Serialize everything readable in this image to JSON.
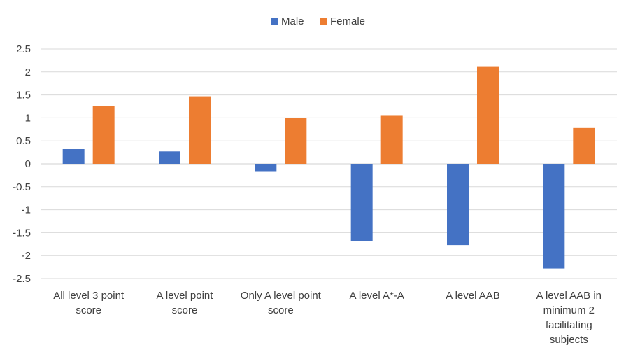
{
  "chart_data": {
    "type": "bar",
    "categories": [
      "All level 3 point score",
      "A level point score",
      "Only A level point score",
      "A level A*-A",
      "A level AAB",
      "A level AAB in minimum 2 facilitating subjects"
    ],
    "category_label_lines": [
      [
        "All level 3 point",
        "score"
      ],
      [
        "A level point",
        "score"
      ],
      [
        "Only A level point",
        "score"
      ],
      [
        "A level A*-A"
      ],
      [
        "A level AAB"
      ],
      [
        "A level AAB in",
        "minimum 2",
        "facilitating",
        "subjects"
      ]
    ],
    "series": [
      {
        "name": "Male",
        "color": "#4472c4",
        "values": [
          0.32,
          0.27,
          -0.16,
          -1.68,
          -1.77,
          -2.28
        ]
      },
      {
        "name": "Female",
        "color": "#ed7d31",
        "values": [
          1.25,
          1.47,
          1.0,
          1.06,
          2.11,
          0.78
        ]
      }
    ],
    "ylim": [
      -2.5,
      2.5
    ],
    "yticks": [
      2.5,
      2,
      1.5,
      1,
      0.5,
      0,
      -0.5,
      -1,
      -1.5,
      -2,
      -2.5
    ],
    "ytick_labels": [
      "2.5",
      "2",
      "1.5",
      "1",
      "0.5",
      "0",
      "-0.5",
      "-1",
      "-1.5",
      "-2",
      "-2.5"
    ],
    "title": "",
    "xlabel": "",
    "ylabel": "",
    "grid": true,
    "legend_position": "top-center"
  }
}
